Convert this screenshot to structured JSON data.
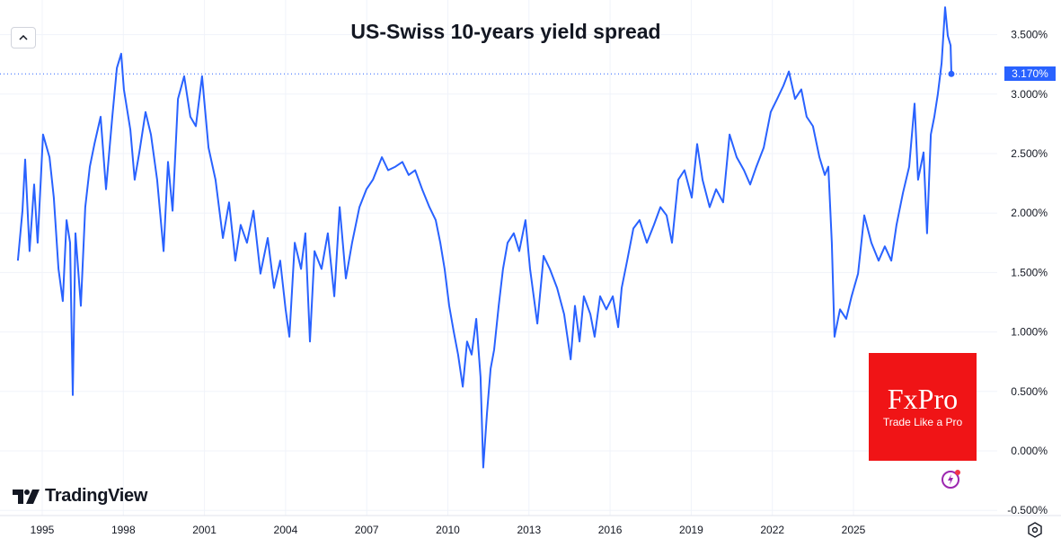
{
  "chart_data": {
    "type": "line",
    "title": "US-Swiss 10-years yield spread",
    "xlabel": "",
    "ylabel": "",
    "x_ticks": [
      "1995",
      "1998",
      "2001",
      "2004",
      "2007",
      "2010",
      "2013",
      "2016",
      "2019",
      "2022",
      "2025"
    ],
    "y_ticks": [
      {
        "value": 3.5,
        "label": "3.500%"
      },
      {
        "value": 3.0,
        "label": "3.000%"
      },
      {
        "value": 2.5,
        "label": "2.500%"
      },
      {
        "value": 2.0,
        "label": "2.000%"
      },
      {
        "value": 1.5,
        "label": "1.500%"
      },
      {
        "value": 1.0,
        "label": "1.000%"
      },
      {
        "value": 0.5,
        "label": "0.500%"
      },
      {
        "value": 0.0,
        "label": "0.000%"
      },
      {
        "value": -0.5,
        "label": "-0.500%"
      }
    ],
    "grid": true,
    "line_color": "#2962ff",
    "last_value": {
      "value": 3.17,
      "label": "3.170%"
    },
    "series": [
      {
        "x": [
          1994.1,
          1994.27,
          1994.37,
          1994.53,
          1994.7,
          1994.83,
          1995.03,
          1995.27,
          1995.43,
          1995.6,
          1995.76,
          1995.9,
          1996.03,
          1996.13,
          1996.23,
          1996.43,
          1996.59,
          1996.76,
          1996.93,
          1997.16,
          1997.36,
          1997.59,
          1997.76,
          1997.92,
          1998.02,
          1998.26,
          1998.42,
          1998.59,
          1998.82,
          1999.02,
          1999.25,
          1999.49,
          1999.65,
          1999.82,
          2000.02,
          2000.25,
          2000.48,
          2000.68,
          2000.91,
          2001.15,
          2001.41,
          2001.68,
          2001.91,
          2002.14,
          2002.34,
          2002.57,
          2002.81,
          2003.07,
          2003.34,
          2003.57,
          2003.8,
          2004.0,
          2004.14,
          2004.34,
          2004.57,
          2004.73,
          2004.9,
          2005.07,
          2005.33,
          2005.56,
          2005.8,
          2006.0,
          2006.23,
          2006.46,
          2006.73,
          2006.99,
          2007.23,
          2007.56,
          2007.79,
          2008.06,
          2008.32,
          2008.55,
          2008.79,
          2009.05,
          2009.32,
          2009.55,
          2009.72,
          2009.88,
          2010.05,
          2010.22,
          2010.38,
          2010.55,
          2010.71,
          2010.88,
          2011.05,
          2011.21,
          2011.31,
          2011.45,
          2011.58,
          2011.71,
          2011.88,
          2012.04,
          2012.21,
          2012.44,
          2012.64,
          2012.87,
          2013.04,
          2013.31,
          2013.54,
          2013.77,
          2014.04,
          2014.3,
          2014.54,
          2014.7,
          2014.87,
          2015.03,
          2015.27,
          2015.43,
          2015.63,
          2015.86,
          2016.1,
          2016.3,
          2016.43,
          2016.63,
          2016.86,
          2017.09,
          2017.36,
          2017.62,
          2017.86,
          2018.09,
          2018.29,
          2018.52,
          2018.75,
          2019.02,
          2019.22,
          2019.42,
          2019.68,
          2019.92,
          2020.18,
          2020.42,
          2020.68,
          2020.95,
          2021.18,
          2021.41,
          2021.68,
          2021.94,
          2022.18,
          2022.41,
          2022.61,
          2022.84,
          2023.07,
          2023.27,
          2023.5,
          2023.74,
          2023.94,
          2024.07,
          2024.2,
          2024.3,
          2024.5,
          2024.73,
          2024.93,
          2025.17,
          2025.4,
          2025.66,
          2025.93,
          2026.16,
          2026.4,
          2026.59,
          2026.83,
          2027.06,
          2027.26,
          2027.39,
          2027.59,
          2027.72,
          2027.86,
          2027.99,
          2028.12,
          2028.26,
          2028.39,
          2028.49,
          2028.59,
          2028.62
        ],
        "y": [
          1.6,
          2.02,
          2.45,
          1.68,
          2.24,
          1.75,
          2.66,
          2.47,
          2.13,
          1.53,
          1.26,
          1.94,
          1.75,
          0.47,
          1.83,
          1.22,
          2.05,
          2.39,
          2.58,
          2.81,
          2.2,
          2.81,
          3.22,
          3.34,
          3.04,
          2.7,
          2.28,
          2.51,
          2.85,
          2.66,
          2.28,
          1.68,
          2.43,
          2.02,
          2.96,
          3.15,
          2.81,
          2.73,
          3.15,
          2.55,
          2.28,
          1.79,
          2.09,
          1.6,
          1.9,
          1.75,
          2.02,
          1.49,
          1.79,
          1.37,
          1.6,
          1.19,
          0.96,
          1.75,
          1.53,
          1.83,
          0.92,
          1.68,
          1.53,
          1.83,
          1.3,
          2.05,
          1.45,
          1.75,
          2.05,
          2.2,
          2.28,
          2.47,
          2.36,
          2.39,
          2.43,
          2.32,
          2.36,
          2.2,
          2.05,
          1.94,
          1.75,
          1.53,
          1.22,
          1.0,
          0.81,
          0.54,
          0.92,
          0.81,
          1.11,
          0.62,
          -0.14,
          0.32,
          0.69,
          0.85,
          1.22,
          1.53,
          1.75,
          1.83,
          1.68,
          1.94,
          1.53,
          1.07,
          1.64,
          1.53,
          1.37,
          1.15,
          0.77,
          1.22,
          0.92,
          1.3,
          1.15,
          0.96,
          1.3,
          1.19,
          1.3,
          1.04,
          1.37,
          1.6,
          1.87,
          1.94,
          1.75,
          1.9,
          2.05,
          1.98,
          1.75,
          2.28,
          2.36,
          2.13,
          2.58,
          2.28,
          2.05,
          2.2,
          2.09,
          2.66,
          2.47,
          2.36,
          2.24,
          2.39,
          2.55,
          2.85,
          2.96,
          3.07,
          3.19,
          2.96,
          3.04,
          2.81,
          2.73,
          2.47,
          2.32,
          2.39,
          1.75,
          0.96,
          1.19,
          1.11,
          1.3,
          1.49,
          1.98,
          1.75,
          1.6,
          1.72,
          1.6,
          1.9,
          2.17,
          2.39,
          2.92,
          2.28,
          2.51,
          1.83,
          2.66,
          2.81,
          3.0,
          3.26,
          3.73,
          3.49,
          3.41,
          3.17
        ]
      }
    ]
  },
  "branding": {
    "platform": "TradingView",
    "broker": "FxPro",
    "broker_tagline": "Trade Like a Pro",
    "broker_color": "#f01416"
  },
  "icons": {
    "collapse": "chevron-up-icon",
    "alert": "lightning-icon",
    "settings": "gear-icon"
  }
}
